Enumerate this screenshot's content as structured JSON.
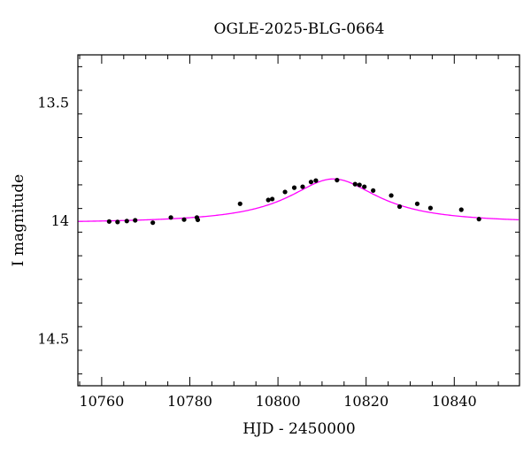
{
  "chart_data": {
    "type": "scatter",
    "title": "OGLE-2025-BLG-0664",
    "xlabel": "HJD - 2450000",
    "ylabel": "I magnitude",
    "xlim": [
      10754.6,
      10854.8
    ],
    "ylim": [
      14.7,
      13.3
    ],
    "y_inverted": true,
    "xticks_major": [
      10760,
      10780,
      10800,
      10820,
      10840
    ],
    "xtick_labels": [
      "10760",
      "10780",
      "10800",
      "10820",
      "10840"
    ],
    "yticks_major": [
      13.5,
      14.0,
      14.5
    ],
    "ytick_labels": [
      "13.5",
      "14",
      "14.5"
    ],
    "grid": false,
    "observations": {
      "name": "",
      "color": "#000000",
      "x": [
        10761.7,
        10763.6,
        10765.7,
        10767.6,
        10771.6,
        10775.7,
        10778.7,
        10781.6,
        10781.8,
        10791.4,
        10797.8,
        10798.7,
        10801.6,
        10803.7,
        10805.6,
        10807.5,
        10808.6,
        10813.4,
        10817.5,
        10818.5,
        10819.6,
        10821.6,
        10825.7,
        10827.6,
        10831.6,
        10834.6,
        10841.6,
        10845.6
      ],
      "y": [
        14.005,
        14.007,
        14.003,
        14.0,
        14.01,
        13.988,
        13.997,
        13.988,
        13.998,
        13.93,
        13.914,
        13.91,
        13.88,
        13.862,
        13.858,
        13.838,
        13.832,
        13.83,
        13.847,
        13.85,
        13.858,
        13.874,
        13.895,
        13.942,
        13.93,
        13.948,
        13.955,
        13.995
      ]
    },
    "model": {
      "name": "",
      "color": "#ff00ff",
      "t0": 10812.6,
      "baseline": 14.013,
      "peak": 13.825,
      "width": 12.5
    }
  }
}
